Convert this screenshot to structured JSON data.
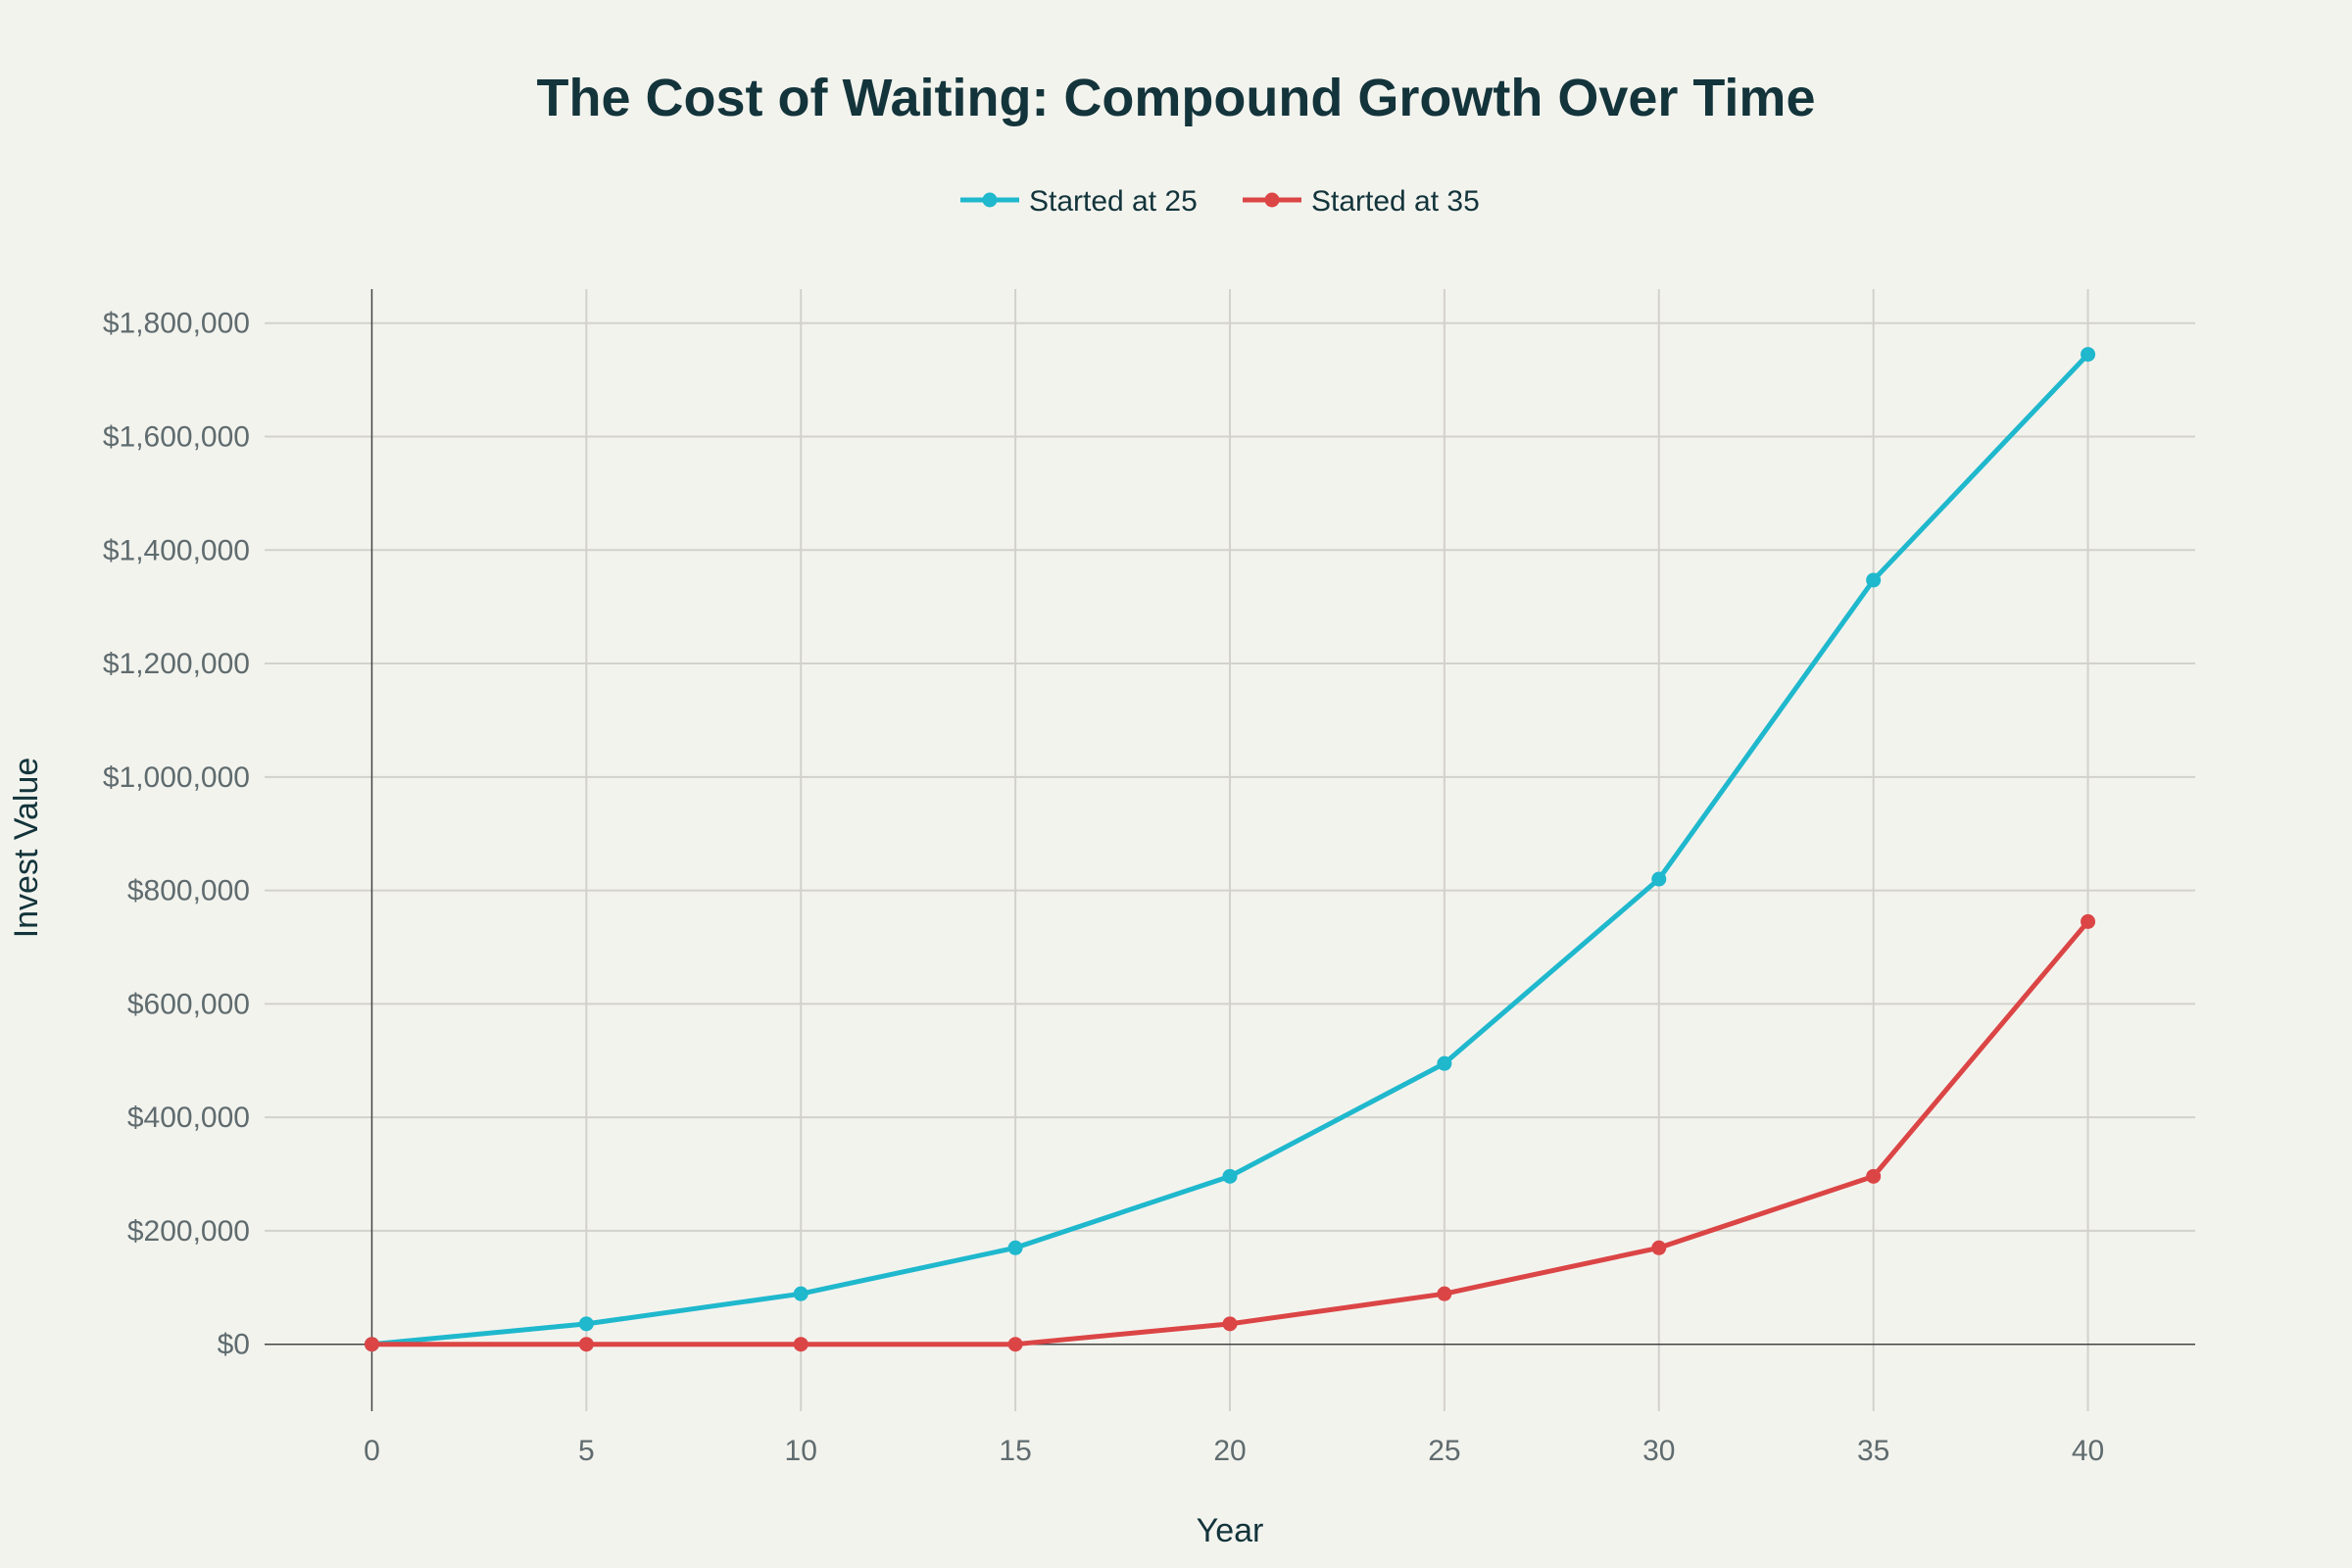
{
  "chart_data": {
    "type": "line",
    "title": "The Cost of Waiting: Compound Growth Over Time",
    "xlabel": "Year",
    "ylabel": "Invest Value",
    "x": [
      0,
      5,
      10,
      15,
      20,
      25,
      30,
      35,
      40
    ],
    "series": [
      {
        "name": "Started at 25",
        "color": "#1FB8CD",
        "values": [
          0,
          36000,
          89000,
          170000,
          296000,
          495000,
          820000,
          1347000,
          1745000
        ]
      },
      {
        "name": "Started at 35",
        "color": "#DB4545",
        "values": [
          0,
          0,
          0,
          0,
          36000,
          89000,
          170000,
          296000,
          745000
        ]
      }
    ],
    "xlim": [
      -2.5,
      42.5
    ],
    "ylim": [
      -118000,
      1860000
    ],
    "xticks": [
      0,
      5,
      10,
      15,
      20,
      25,
      30,
      35,
      40
    ],
    "xtick_labels": [
      "0",
      "5",
      "10",
      "15",
      "20",
      "25",
      "30",
      "35",
      "40"
    ],
    "yticks": [
      0,
      200000,
      400000,
      600000,
      800000,
      1000000,
      1200000,
      1400000,
      1600000,
      1800000
    ],
    "ytick_labels": [
      "$0",
      "$200,000",
      "$400,000",
      "$600,000",
      "$800,000",
      "$1,000,000",
      "$1,200,000",
      "$1,400,000",
      "$1,600,000",
      "$1,800,000"
    ],
    "grid": true,
    "legend_position": "top-center"
  }
}
